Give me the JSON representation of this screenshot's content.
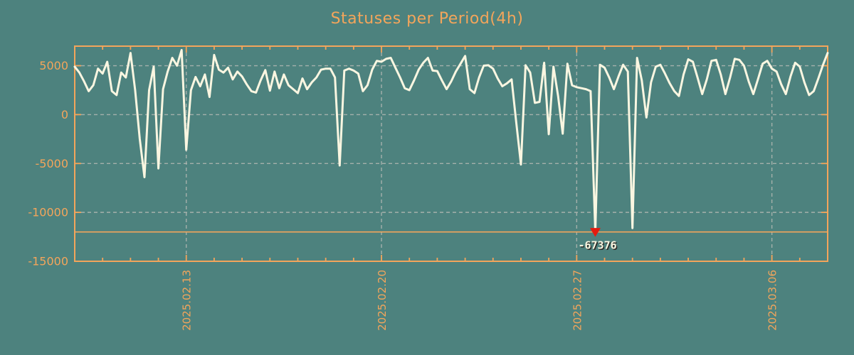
{
  "title": "Statuses per Period(4h)",
  "colors": {
    "background": "#4d827e",
    "accent_orange": "#f3a55b",
    "line_cream": "#faf6e1",
    "grid_grey": "#aeb6b0",
    "marker_red": "#e41b0f",
    "label_shadow": "#2e2e2a"
  },
  "chart_data": {
    "type": "line",
    "title": "Statuses per Period(4h)",
    "xlabel": "",
    "ylabel": "",
    "grid": true,
    "legend": "none",
    "ylim": [
      -15000,
      7000
    ],
    "ytick_labels": [
      "5000",
      "0",
      "-5000",
      "-10000",
      "-15000"
    ],
    "ytick_values": [
      5000,
      0,
      -5000,
      -10000,
      -15000
    ],
    "x_major_labels": [
      "2025.02.13",
      "2025.02.20",
      "2025.02.27",
      "2025.03.06"
    ],
    "x_major_indices": [
      24,
      66,
      108,
      150
    ],
    "x_minor_tick_every": 6,
    "x_start": "2025.02.09 00:00",
    "x_step_hours": 4,
    "min_annotation": {
      "label": "-67376",
      "value": -67376,
      "index": 112,
      "line_value": -12000
    },
    "values": [
      4900,
      4300,
      3400,
      2400,
      3000,
      4700,
      4200,
      5400,
      2400,
      2000,
      4300,
      3800,
      6300,
      2500,
      -2500,
      -6400,
      2500,
      4900,
      -5500,
      2600,
      4400,
      5800,
      5000,
      6600,
      -3600,
      2500,
      3850,
      2900,
      4100,
      1800,
      6100,
      4600,
      4300,
      4800,
      3600,
      4400,
      3900,
      3100,
      2400,
      2250,
      3500,
      4550,
      2450,
      4400,
      2700,
      4100,
      3000,
      2600,
      2200,
      3700,
      2600,
      3300,
      3800,
      4600,
      4700,
      4700,
      3800,
      -5200,
      4500,
      4700,
      4500,
      4200,
      2400,
      3000,
      4600,
      5500,
      5400,
      5700,
      5800,
      4800,
      3800,
      2700,
      2500,
      3500,
      4600,
      5300,
      5800,
      4500,
      4450,
      3500,
      2600,
      3400,
      4400,
      5200,
      6000,
      2600,
      2200,
      3800,
      5000,
      5050,
      4700,
      3700,
      2900,
      3200,
      3600,
      -800,
      -5100,
      5050,
      4300,
      1200,
      1300,
      5300,
      -2000,
      4900,
      1900,
      -1950,
      5200,
      3000,
      2800,
      2700,
      2600,
      2400,
      -67376,
      5100,
      4800,
      3800,
      2600,
      3900,
      5100,
      4400,
      -11600,
      5800,
      3500,
      -300,
      3300,
      4900,
      5100,
      4200,
      3200,
      2400,
      1900,
      4100,
      5650,
      5400,
      3800,
      2100,
      3600,
      5500,
      5600,
      4100,
      2100,
      3800,
      5700,
      5600,
      5000,
      3400,
      2100,
      3600,
      5200,
      5500,
      4700,
      4400,
      3100,
      2100,
      3900,
      5300,
      4900,
      3300,
      2000,
      2400,
      3700,
      5100,
      6300
    ]
  }
}
